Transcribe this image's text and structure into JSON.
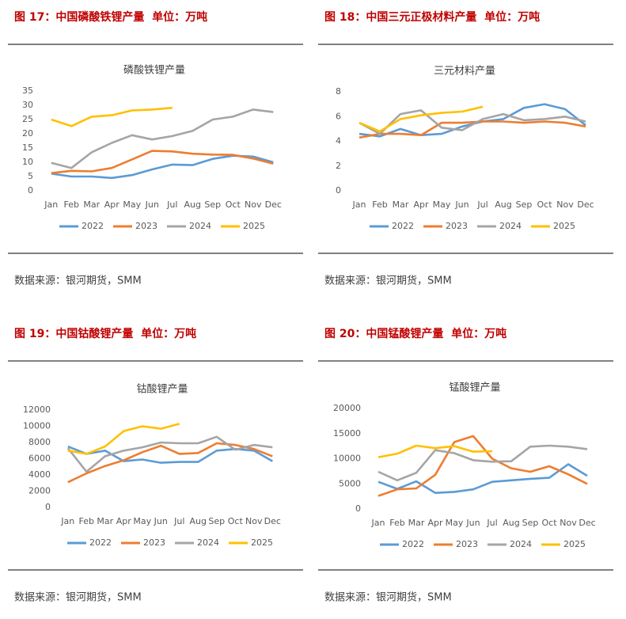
{
  "chart_data": [
    {
      "type": "line",
      "figure_title": "图 17：中国磷酸铁锂产量  单位：万吨",
      "title": "磷酸铁锂产量",
      "source": "数据来源：银河期货，SMM",
      "categories": [
        "Jan",
        "Feb",
        "Mar",
        "Apr",
        "May",
        "Jun",
        "Jul",
        "Aug",
        "Sep",
        "Oct",
        "Nov",
        "Dec"
      ],
      "ylim": [
        0,
        35
      ],
      "yticks": [
        0,
        5,
        10,
        15,
        20,
        25,
        30,
        35
      ],
      "series": [
        {
          "name": "2022",
          "color": "#5b9bd5",
          "values": [
            6,
            5,
            5,
            4.5,
            5.5,
            7.5,
            9.2,
            9,
            11.2,
            12.3,
            12,
            10
          ]
        },
        {
          "name": "2023",
          "color": "#ed7d31",
          "values": [
            6.2,
            7,
            6.8,
            8,
            11,
            14,
            13.8,
            13,
            12.7,
            12.6,
            11.3,
            9.5
          ]
        },
        {
          "name": "2024",
          "color": "#a5a5a5",
          "values": [
            9.8,
            8,
            13.5,
            16.8,
            19.5,
            18,
            19.2,
            21,
            25,
            26,
            28.5,
            27.6
          ]
        },
        {
          "name": "2025",
          "color": "#ffc000",
          "values": [
            25,
            22.7,
            26,
            26.5,
            28.2,
            28.5,
            29.1,
            null,
            null,
            null,
            null,
            null
          ]
        }
      ]
    },
    {
      "type": "line",
      "figure_title": "图 18：中国三元正极材料产量  单位：万吨",
      "title": "三元材料产量",
      "source": "数据来源：银河期货，SMM",
      "categories": [
        "Jan",
        "Feb",
        "Mar",
        "Apr",
        "May",
        "Jun",
        "Jul",
        "Aug",
        "Sep",
        "Oct",
        "Nov",
        "Dec"
      ],
      "ylim": [
        0,
        8
      ],
      "yticks": [
        0,
        2,
        4,
        6,
        8
      ],
      "series": [
        {
          "name": "2022",
          "color": "#5b9bd5",
          "values": [
            4.6,
            4.4,
            5,
            4.5,
            4.6,
            5.2,
            5.6,
            5.8,
            6.7,
            7,
            6.6,
            5.3
          ]
        },
        {
          "name": "2023",
          "color": "#ed7d31",
          "values": [
            4.3,
            4.6,
            4.6,
            4.5,
            5.5,
            5.5,
            5.6,
            5.6,
            5.5,
            5.6,
            5.5,
            5.2
          ]
        },
        {
          "name": "2024",
          "color": "#a5a5a5",
          "values": [
            5.5,
            4.6,
            6.2,
            6.5,
            5.1,
            4.9,
            5.8,
            6.2,
            5.7,
            5.8,
            6,
            5.6
          ]
        },
        {
          "name": "2025",
          "color": "#ffc000",
          "values": [
            5.5,
            4.8,
            5.8,
            6.1,
            6.3,
            6.4,
            6.8,
            null,
            null,
            null,
            null,
            null
          ]
        }
      ]
    },
    {
      "type": "line",
      "figure_title": "图 19：中国钴酸锂产量  单位：万吨",
      "title": "钴酸锂产量",
      "source": "数据来源：银河期货，SMM",
      "categories": [
        "Jan",
        "Feb",
        "Mar",
        "Apr",
        "May",
        "Jun",
        "Jul",
        "Aug",
        "Sep",
        "Oct",
        "Nov",
        "Dec"
      ],
      "ylim": [
        0,
        12000
      ],
      "yticks": [
        0,
        2000,
        4000,
        6000,
        8000,
        10000,
        12000
      ],
      "series": [
        {
          "name": "2022",
          "color": "#5b9bd5",
          "values": [
            7500,
            6600,
            7000,
            5700,
            5900,
            5500,
            5600,
            5600,
            7000,
            7200,
            7000,
            5700
          ]
        },
        {
          "name": "2023",
          "color": "#ed7d31",
          "values": [
            3100,
            4200,
            5100,
            5800,
            6800,
            7600,
            6600,
            6700,
            7900,
            7700,
            7200,
            6300
          ]
        },
        {
          "name": "2024",
          "color": "#a5a5a5",
          "values": [
            7300,
            4400,
            6300,
            7000,
            7400,
            8000,
            7900,
            7900,
            8700,
            7100,
            7700,
            7400
          ]
        },
        {
          "name": "2025",
          "color": "#ffc000",
          "values": [
            7000,
            6600,
            7500,
            9400,
            10000,
            9700,
            10300,
            null,
            null,
            null,
            null,
            null
          ]
        }
      ]
    },
    {
      "type": "line",
      "figure_title": "图 20：中国锰酸锂产量  单位：万吨",
      "title": "锰酸锂产量",
      "source": "数据来源：银河期货，SMM",
      "categories": [
        "Jan",
        "Feb",
        "Mar",
        "Apr",
        "May",
        "Jun",
        "Jul",
        "Aug",
        "Sep",
        "Oct",
        "Nov",
        "Dec"
      ],
      "ylim": [
        0,
        20000
      ],
      "yticks": [
        0,
        5000,
        10000,
        15000,
        20000
      ],
      "series": [
        {
          "name": "2022",
          "color": "#5b9bd5",
          "values": [
            5400,
            4000,
            5500,
            3200,
            3400,
            3900,
            5400,
            5700,
            6000,
            6200,
            8900,
            6600
          ]
        },
        {
          "name": "2023",
          "color": "#ed7d31",
          "values": [
            2600,
            3900,
            4100,
            6800,
            13300,
            14500,
            10000,
            8100,
            7400,
            8500,
            6900,
            5000
          ]
        },
        {
          "name": "2024",
          "color": "#a5a5a5",
          "values": [
            7400,
            5700,
            7200,
            11700,
            11100,
            9700,
            9400,
            9500,
            12400,
            12600,
            12400,
            11900
          ]
        },
        {
          "name": "2025",
          "color": "#ffc000",
          "values": [
            10300,
            11000,
            12600,
            12100,
            12500,
            11400,
            11500,
            null,
            null,
            null,
            null,
            null
          ]
        }
      ]
    }
  ]
}
